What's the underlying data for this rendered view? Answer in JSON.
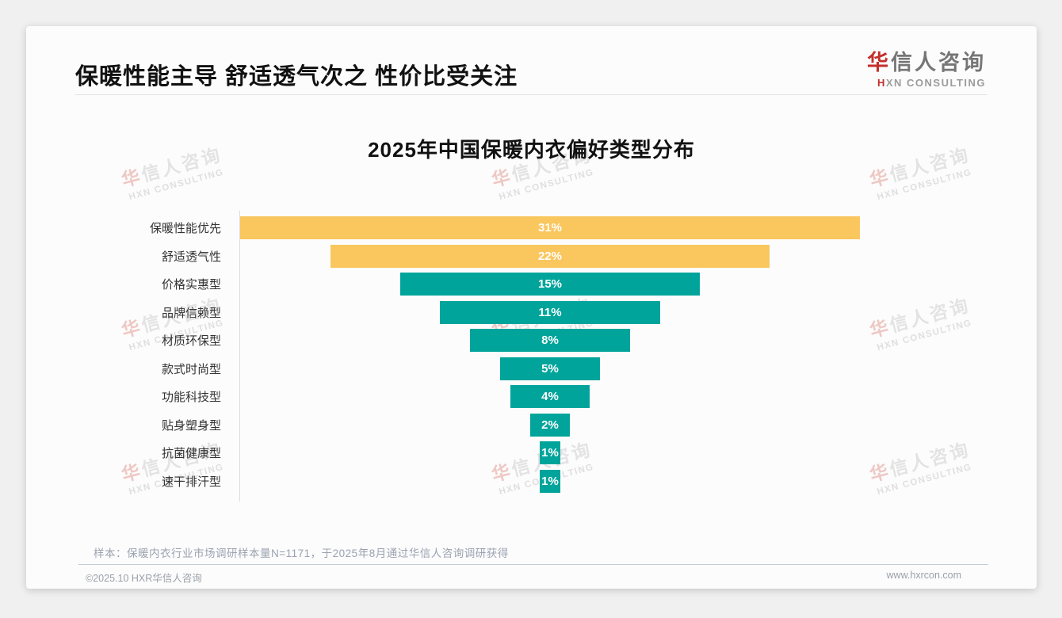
{
  "header": {
    "title": "保暖性能主导 舒适透气次之 性价比受关注",
    "logo": {
      "cn_first": "华",
      "cn_rest": "信人咨询",
      "en_first": "H",
      "en_rest": "XN CONSULTING"
    }
  },
  "watermark": {
    "cn_first": "华",
    "cn_rest": "信人咨询",
    "en": "HXN CONSULTING"
  },
  "chart_data": {
    "type": "bar",
    "subtype": "centered-funnel-horizontal",
    "title": "2025年中国保暖内衣偏好类型分布",
    "categories": [
      "保暖性能优先",
      "舒适透气性",
      "价格实惠型",
      "品牌信赖型",
      "材质环保型",
      "款式时尚型",
      "功能科技型",
      "贴身塑身型",
      "抗菌健康型",
      "速干排汗型"
    ],
    "values": [
      31,
      22,
      15,
      11,
      8,
      5,
      4,
      2,
      1,
      1
    ],
    "value_labels": [
      "31%",
      "22%",
      "15%",
      "11%",
      "8%",
      "5%",
      "4%",
      "2%",
      "1%",
      "1%"
    ],
    "bar_colors": [
      "#fac65e",
      "#fac65e",
      "#00a49b",
      "#00a49b",
      "#00a49b",
      "#00a49b",
      "#00a49b",
      "#00a49b",
      "#00a49b",
      "#00a49b"
    ],
    "unit": "%",
    "xlim": [
      0,
      31
    ],
    "legend": "none",
    "grid": "off",
    "accent_yellow": "#fac65e",
    "accent_teal": "#00a49b"
  },
  "sample_note": "样本：保暖内衣行业市场调研样本量N=1171，于2025年8月通过华信人咨询调研获得",
  "footer": {
    "left": "©2025.10 HXR华信人咨询",
    "right": "www.hxrcon.com"
  }
}
